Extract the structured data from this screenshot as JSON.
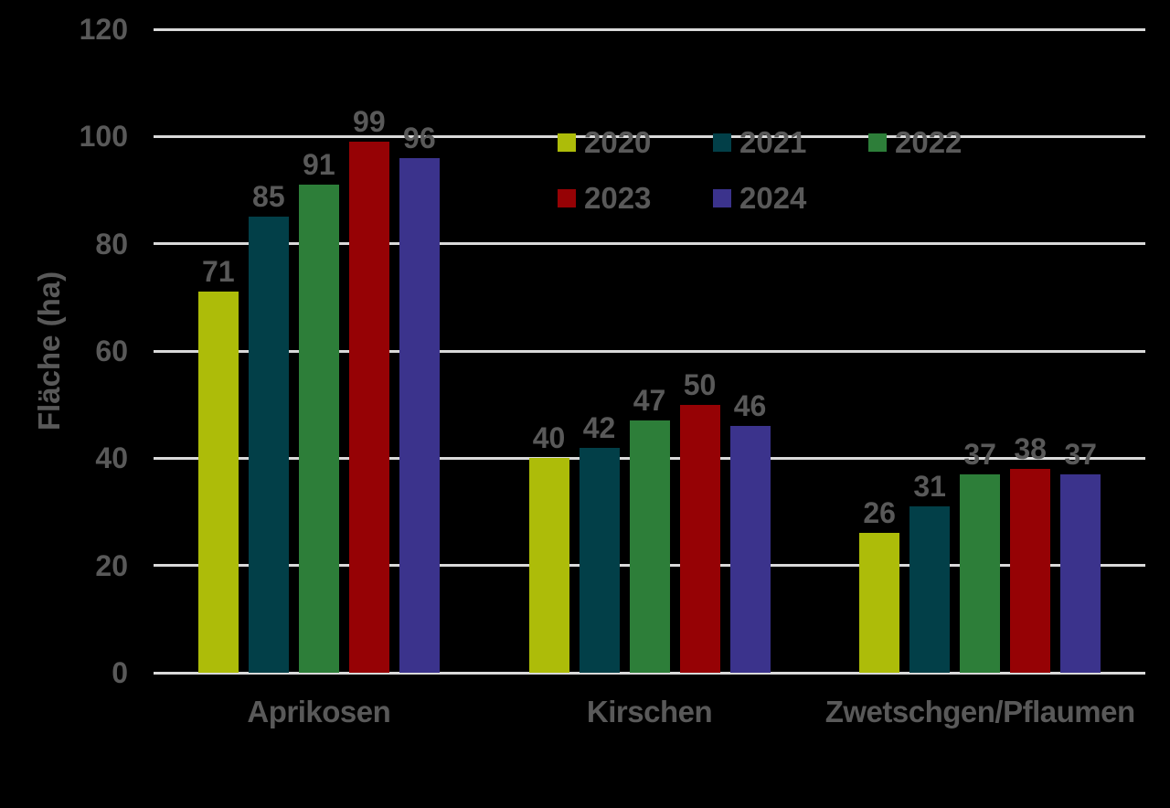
{
  "colors": {
    "background": "#000000",
    "text": "#595959",
    "gridline": "#d9d9d9"
  },
  "chart_data": {
    "type": "bar",
    "title": "",
    "xlabel": "",
    "ylabel": "Fläche (ha)",
    "ylim": [
      0,
      120
    ],
    "yticks": [
      0,
      20,
      40,
      60,
      80,
      100,
      120
    ],
    "grid": true,
    "data_labels": true,
    "legend_position": "inside-top-center, two rows",
    "categories": [
      "Aprikosen",
      "Kirschen",
      "Zwetschgen/Pflaumen"
    ],
    "series": [
      {
        "name": "2020",
        "color": "#adbc09",
        "values": [
          71,
          40,
          26
        ]
      },
      {
        "name": "2021",
        "color": "#023f48",
        "values": [
          85,
          42,
          31
        ]
      },
      {
        "name": "2022",
        "color": "#2d7e39",
        "values": [
          91,
          47,
          37
        ]
      },
      {
        "name": "2023",
        "color": "#960205",
        "values": [
          99,
          50,
          38
        ]
      },
      {
        "name": "2024",
        "color": "#3b338c",
        "values": [
          96,
          46,
          37
        ]
      }
    ]
  }
}
